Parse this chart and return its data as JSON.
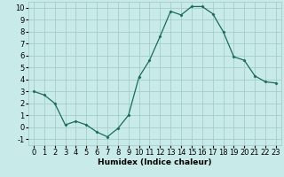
{
  "x": [
    0,
    1,
    2,
    3,
    4,
    5,
    6,
    7,
    8,
    9,
    10,
    11,
    12,
    13,
    14,
    15,
    16,
    17,
    18,
    19,
    20,
    21,
    22,
    23
  ],
  "y": [
    3,
    2.7,
    2.0,
    0.2,
    0.5,
    0.2,
    -0.4,
    -0.8,
    -0.1,
    1.0,
    4.2,
    5.6,
    7.6,
    9.7,
    9.4,
    10.1,
    10.1,
    9.5,
    8.0,
    5.9,
    5.6,
    4.3,
    3.8,
    3.7
  ],
  "line_color": "#1a6b5e",
  "marker": "D",
  "marker_size": 1.5,
  "line_width": 0.9,
  "background_color": "#c8eae8",
  "grid_color": "#9ec8c4",
  "xlabel": "Humidex (Indice chaleur)",
  "xlim": [
    -0.5,
    23.5
  ],
  "ylim": [
    -1.5,
    10.5
  ],
  "yticks": [
    -1,
    0,
    1,
    2,
    3,
    4,
    5,
    6,
    7,
    8,
    9,
    10
  ],
  "xticks": [
    0,
    1,
    2,
    3,
    4,
    5,
    6,
    7,
    8,
    9,
    10,
    11,
    12,
    13,
    14,
    15,
    16,
    17,
    18,
    19,
    20,
    21,
    22,
    23
  ],
  "xlabel_fontsize": 6.5,
  "tick_fontsize": 6
}
